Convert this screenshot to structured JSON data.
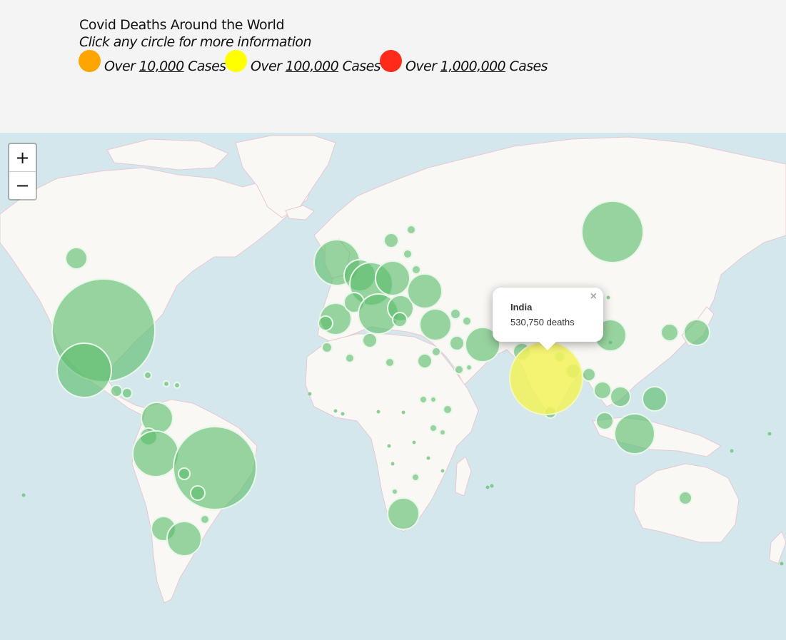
{
  "header": {
    "title": "Covid Deaths Around the World",
    "subtitle": "Click any circle for more information",
    "legend": [
      {
        "prefix": "Over ",
        "value": "10,000",
        "suffix": " Cases",
        "color": "#ffa500"
      },
      {
        "prefix": "Over ",
        "value": "100,000",
        "suffix": " Cases",
        "color": "#ffff00"
      },
      {
        "prefix": "Over ",
        "value": "1,000,000",
        "suffix": " Cases",
        "color": "#ff2a1a"
      }
    ]
  },
  "map": {
    "zoom_in_label": "+",
    "zoom_out_label": "−",
    "colors": {
      "water": "#d4e7ec",
      "land": "#faf8f5",
      "border": "#e8c8d2",
      "circle_fill": "#5bbd6a",
      "circle_stroke": "#e9f7ea",
      "highlight_fill": "#f2f25a"
    },
    "popup": {
      "name": "India",
      "deaths": "530,750 deaths",
      "close_label": "×"
    }
  }
}
